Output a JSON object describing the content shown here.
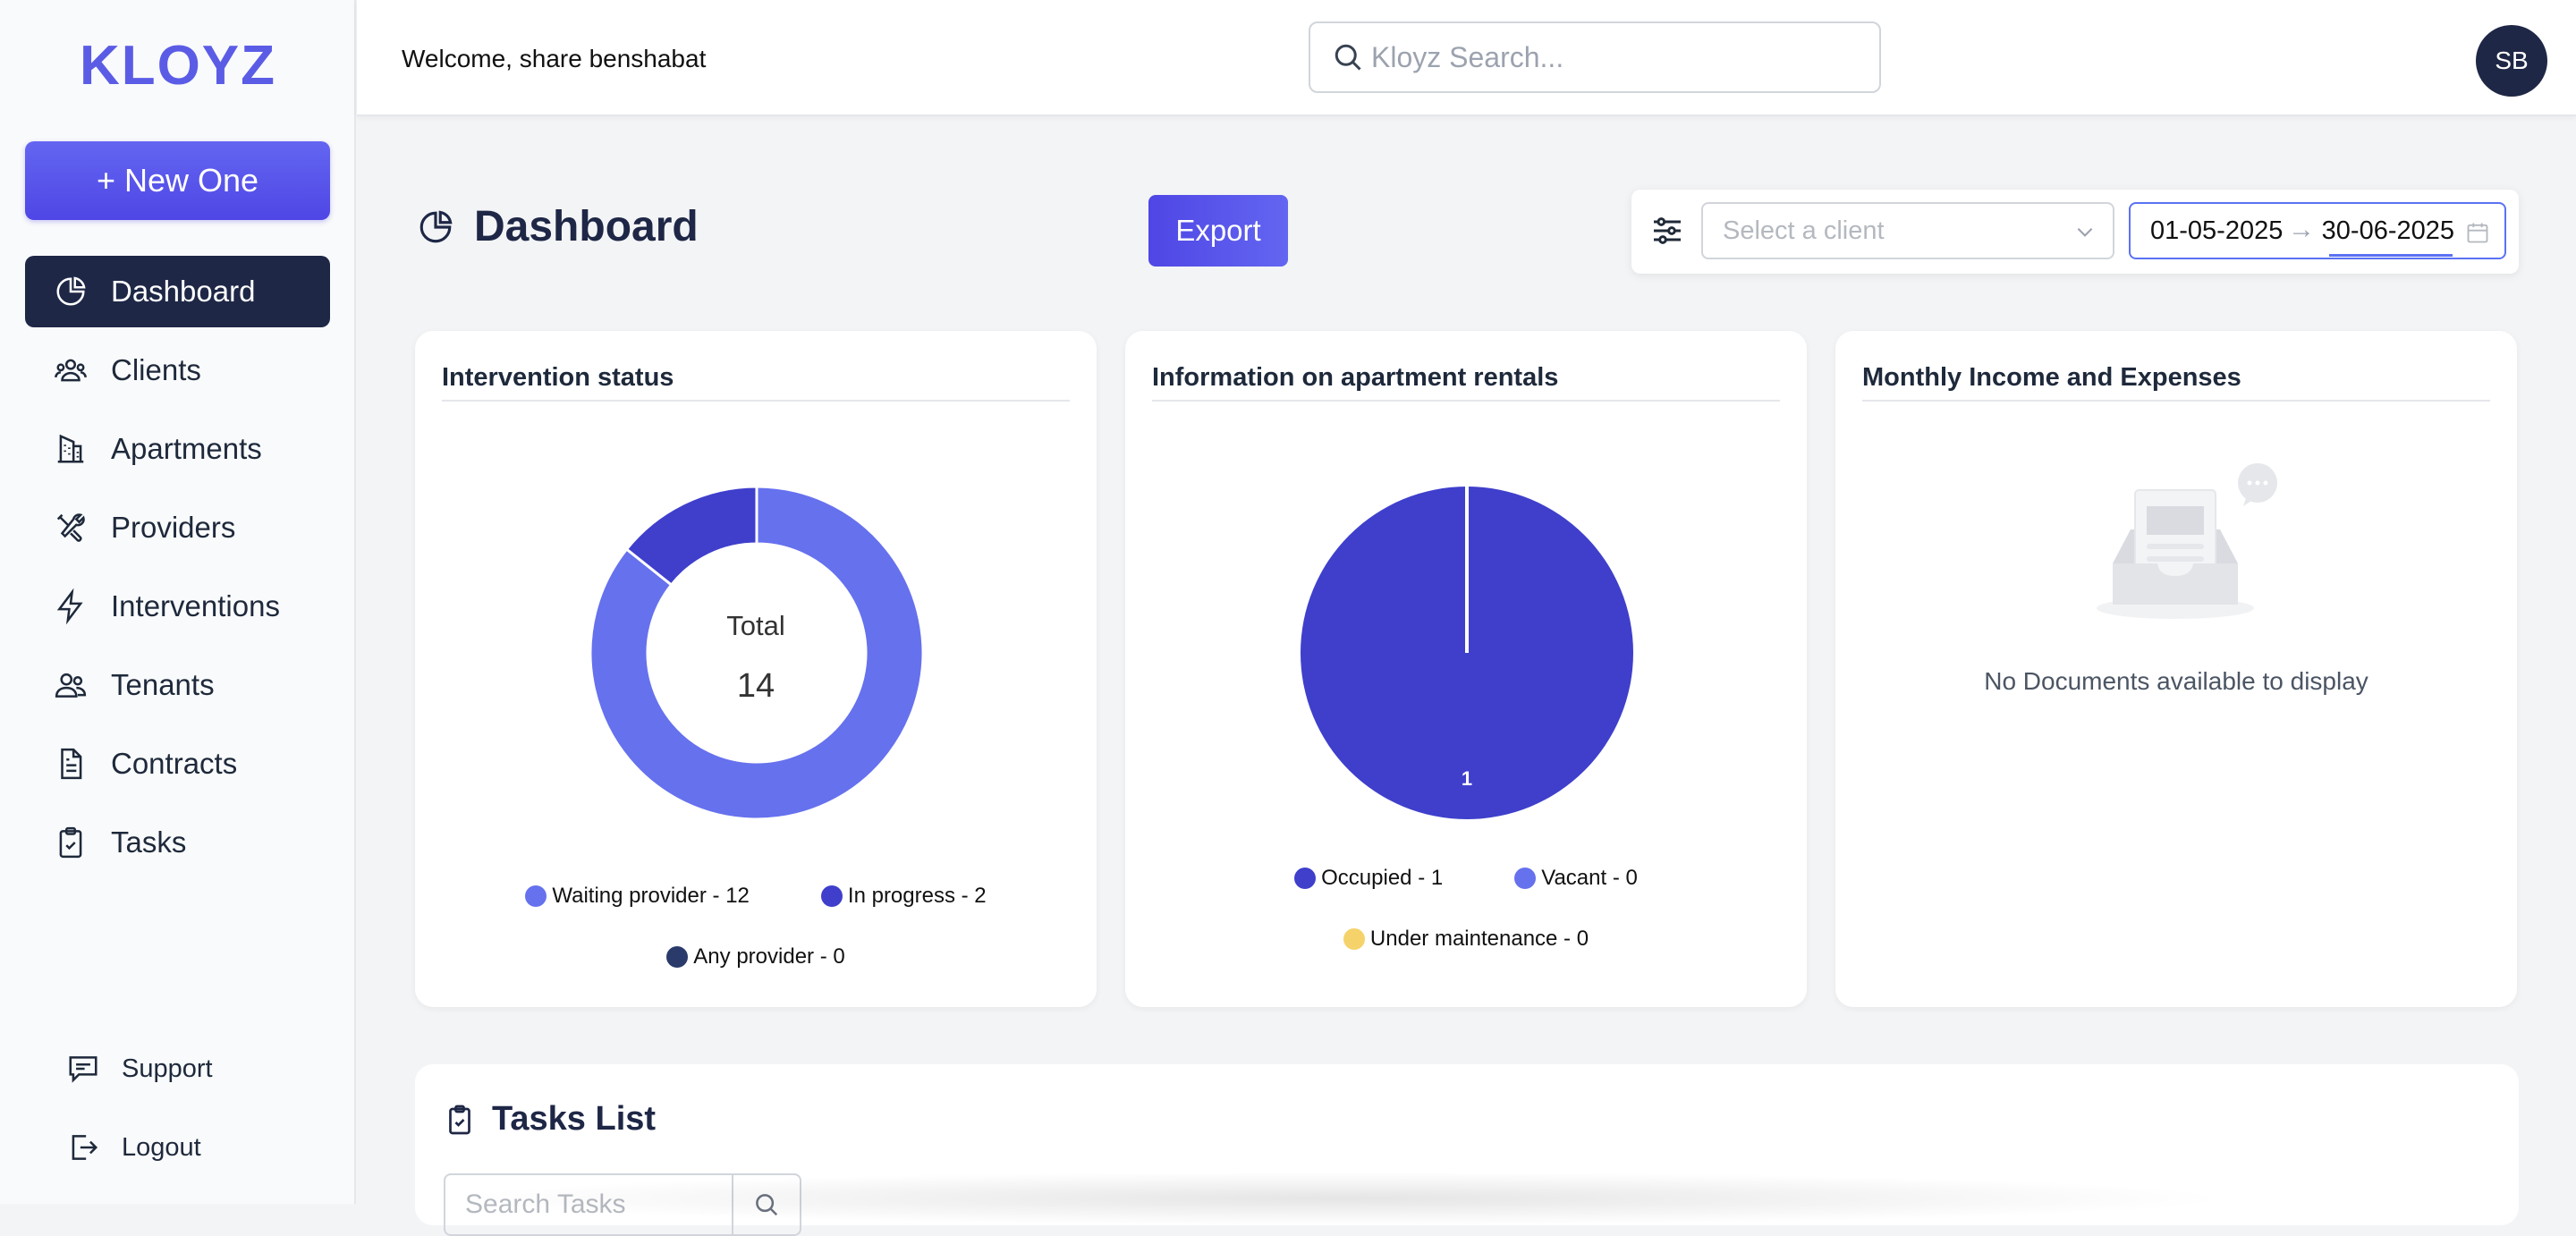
{
  "app": {
    "logo": "KLOYZ"
  },
  "sidebar": {
    "new_button": "+ New One",
    "items": [
      {
        "label": "Dashboard",
        "icon": "pie-chart-icon",
        "active": true
      },
      {
        "label": "Clients",
        "icon": "users-icon"
      },
      {
        "label": "Apartments",
        "icon": "building-icon"
      },
      {
        "label": "Providers",
        "icon": "tools-icon"
      },
      {
        "label": "Interventions",
        "icon": "lightning-icon"
      },
      {
        "label": "Tenants",
        "icon": "people-icon"
      },
      {
        "label": "Contracts",
        "icon": "document-icon"
      },
      {
        "label": "Tasks",
        "icon": "clipboard-check-icon"
      }
    ],
    "bottom": [
      {
        "label": "Support",
        "icon": "chat-icon"
      },
      {
        "label": "Logout",
        "icon": "logout-icon"
      }
    ]
  },
  "header": {
    "welcome": "Welcome, share benshabat",
    "search_placeholder": "Kloyz Search...",
    "avatar": "SB"
  },
  "page": {
    "title": "Dashboard",
    "export": "Export",
    "client_placeholder": "Select a client",
    "date_start": "01-05-2025",
    "date_end": "30-06-2025",
    "date_separator": "→"
  },
  "cards": {
    "intervention": {
      "title": "Intervention status",
      "center_label": "Total",
      "center_value": "14",
      "legend": [
        "Waiting provider - 12",
        "In progress - 2",
        "Any provider - 0"
      ]
    },
    "rentals": {
      "title": "Information on apartment rentals",
      "slice_label": "1",
      "legend": [
        "Occupied - 1",
        "Vacant - 0",
        "Under maintenance - 0"
      ]
    },
    "income": {
      "title": "Monthly Income and Expenses",
      "empty_message": "No Documents available to display"
    }
  },
  "tasks": {
    "title": "Tasks List",
    "search_placeholder": "Search Tasks"
  },
  "chart_data": [
    {
      "type": "pie",
      "variant": "donut",
      "title": "Intervention status",
      "categories": [
        "Waiting provider",
        "In progress",
        "Any provider"
      ],
      "values": [
        12,
        2,
        0
      ],
      "colors": [
        "#6671ee",
        "#3f3fcc",
        "#2a3a6b"
      ],
      "center_text": "Total 14"
    },
    {
      "type": "pie",
      "title": "Information on apartment rentals",
      "categories": [
        "Occupied",
        "Vacant",
        "Under maintenance"
      ],
      "values": [
        1,
        0,
        0
      ],
      "colors": [
        "#3f3fcc",
        "#6671ee",
        "#f5d36a"
      ],
      "data_labels": [
        "1"
      ]
    }
  ]
}
